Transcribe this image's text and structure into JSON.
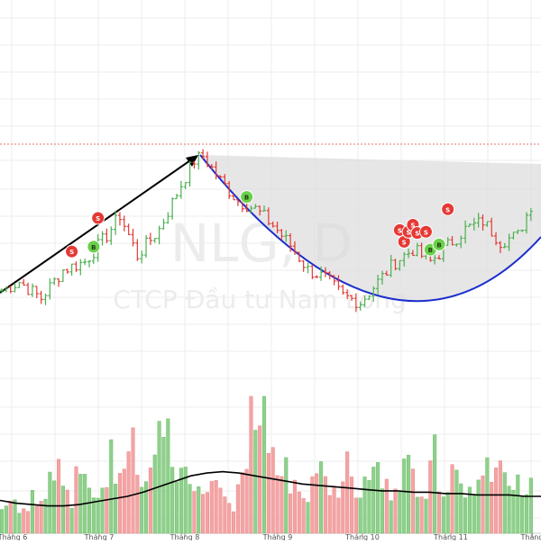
{
  "chart_data": {
    "type": "ohlc",
    "watermark": {
      "symbol": "NLG, D",
      "company": "CTCP Đầu tư Nam Long"
    },
    "x_labels": [
      "Tháng 6",
      "Tháng 7",
      "Tháng 8",
      "Tháng 9",
      "Tháng 10",
      "Tháng 11",
      "Tháng"
    ],
    "colors": {
      "up": "#4caf50",
      "down": "#e53935",
      "vol_up": "#8fd08c",
      "vol_down": "#f4a3a3",
      "ma": "#000000",
      "cup": "#1a2ecc",
      "arrow": "#000000",
      "ref_line": "#e57373",
      "buy_marker": "#6ad04a",
      "sell_marker": "#e53935",
      "grid": "#eeeeee"
    },
    "buy_marker_label": "B",
    "sell_marker_label": "S",
    "price_path": [
      [
        0,
        0.28
      ],
      [
        4,
        0.32
      ],
      [
        9,
        0.24
      ],
      [
        14,
        0.38
      ],
      [
        19,
        0.42
      ],
      [
        24,
        0.55
      ],
      [
        27,
        0.65
      ],
      [
        31,
        0.45
      ],
      [
        36,
        0.58
      ],
      [
        41,
        0.8
      ],
      [
        44,
        0.92
      ],
      [
        46,
        0.94
      ],
      [
        50,
        0.82
      ],
      [
        54,
        0.72
      ],
      [
        58,
        0.68
      ],
      [
        62,
        0.6
      ],
      [
        66,
        0.5
      ],
      [
        70,
        0.38
      ],
      [
        74,
        0.34
      ],
      [
        78,
        0.25
      ],
      [
        82,
        0.22
      ],
      [
        86,
        0.32
      ],
      [
        90,
        0.42
      ],
      [
        94,
        0.48
      ],
      [
        98,
        0.42
      ],
      [
        102,
        0.5
      ],
      [
        106,
        0.58
      ],
      [
        110,
        0.62
      ],
      [
        114,
        0.52
      ],
      [
        118,
        0.55
      ],
      [
        121,
        0.7
      ]
    ],
    "buy_signals_at": [
      21,
      56,
      98,
      100
    ],
    "sell_signals_at": [
      16,
      22,
      91,
      92,
      93,
      94,
      95,
      97,
      102
    ],
    "volume_levels": [
      0.22,
      0.3,
      0.18,
      0.2,
      0.35,
      0.25,
      0.28,
      0.4,
      0.55,
      0.3,
      0.2,
      0.45,
      0.5,
      0.3,
      0.25,
      0.35,
      0.6,
      0.45,
      0.5,
      0.7,
      0.4,
      0.35,
      0.6,
      0.75,
      0.9,
      0.55,
      0.5,
      0.45,
      0.4,
      0.35,
      0.3,
      0.5,
      0.35,
      0.25,
      0.2,
      0.3,
      0.4,
      0.7,
      0.85,
      1.0,
      0.55,
      0.45,
      0.5,
      0.35,
      0.3,
      0.25,
      0.4,
      0.55,
      0.45,
      0.35,
      0.3,
      0.5,
      0.4,
      0.3,
      0.35,
      0.45,
      0.5,
      0.35,
      0.3,
      0.4,
      0.5,
      0.45,
      0.35,
      0.3,
      0.6,
      0.4,
      0.35,
      0.5,
      0.45,
      0.3,
      0.35,
      0.4,
      0.55,
      0.35,
      0.45,
      0.5,
      0.3,
      0.4,
      0.35,
      0.45
    ],
    "volume_highlight_index": 57,
    "moving_average_profile": [
      0.24,
      0.22,
      0.21,
      0.2,
      0.2,
      0.21,
      0.23,
      0.25,
      0.27,
      0.3,
      0.34,
      0.38,
      0.42,
      0.44,
      0.45,
      0.44,
      0.42,
      0.4,
      0.38,
      0.36,
      0.35,
      0.34,
      0.33,
      0.32,
      0.31,
      0.31,
      0.3,
      0.3,
      0.29,
      0.29,
      0.28,
      0.28,
      0.28,
      0.27,
      0.27
    ]
  }
}
